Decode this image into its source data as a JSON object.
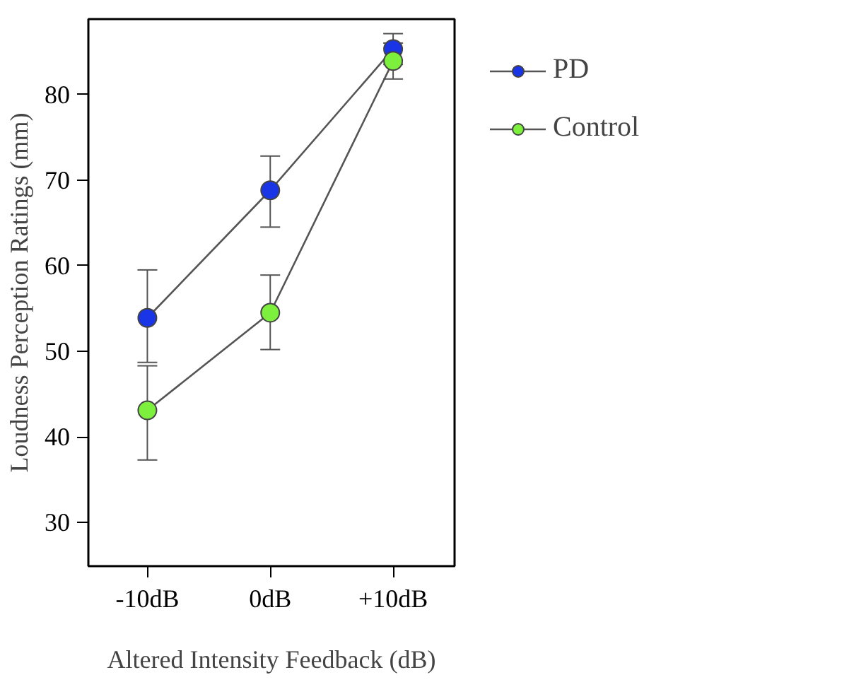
{
  "chart_data": {
    "type": "line",
    "xlabel": "Altered Intensity Feedback (dB)",
    "ylabel": "Loudness Perception Ratings (mm)",
    "categories": [
      "-10dB",
      "0dB",
      "+10dB"
    ],
    "series": [
      {
        "name": "PD",
        "color": "#1a35e6",
        "values": [
          53.9,
          68.8,
          85.3
        ],
        "errors": [
          [
            48.7,
            59.5
          ],
          [
            64.5,
            72.8
          ],
          [
            83.5,
            87.1
          ]
        ]
      },
      {
        "name": "Control",
        "color": "#7cf03c",
        "values": [
          43.1,
          54.5,
          83.9
        ],
        "errors": [
          [
            37.3,
            48.3
          ],
          [
            50.2,
            58.9
          ],
          [
            81.8,
            86.0
          ]
        ]
      }
    ],
    "ylim": [
      24.9,
      88.8
    ],
    "yticks": [
      30,
      40,
      50,
      60,
      70,
      80
    ],
    "grid": false,
    "legend": "right",
    "marker": "circle",
    "line_style": "solid"
  }
}
